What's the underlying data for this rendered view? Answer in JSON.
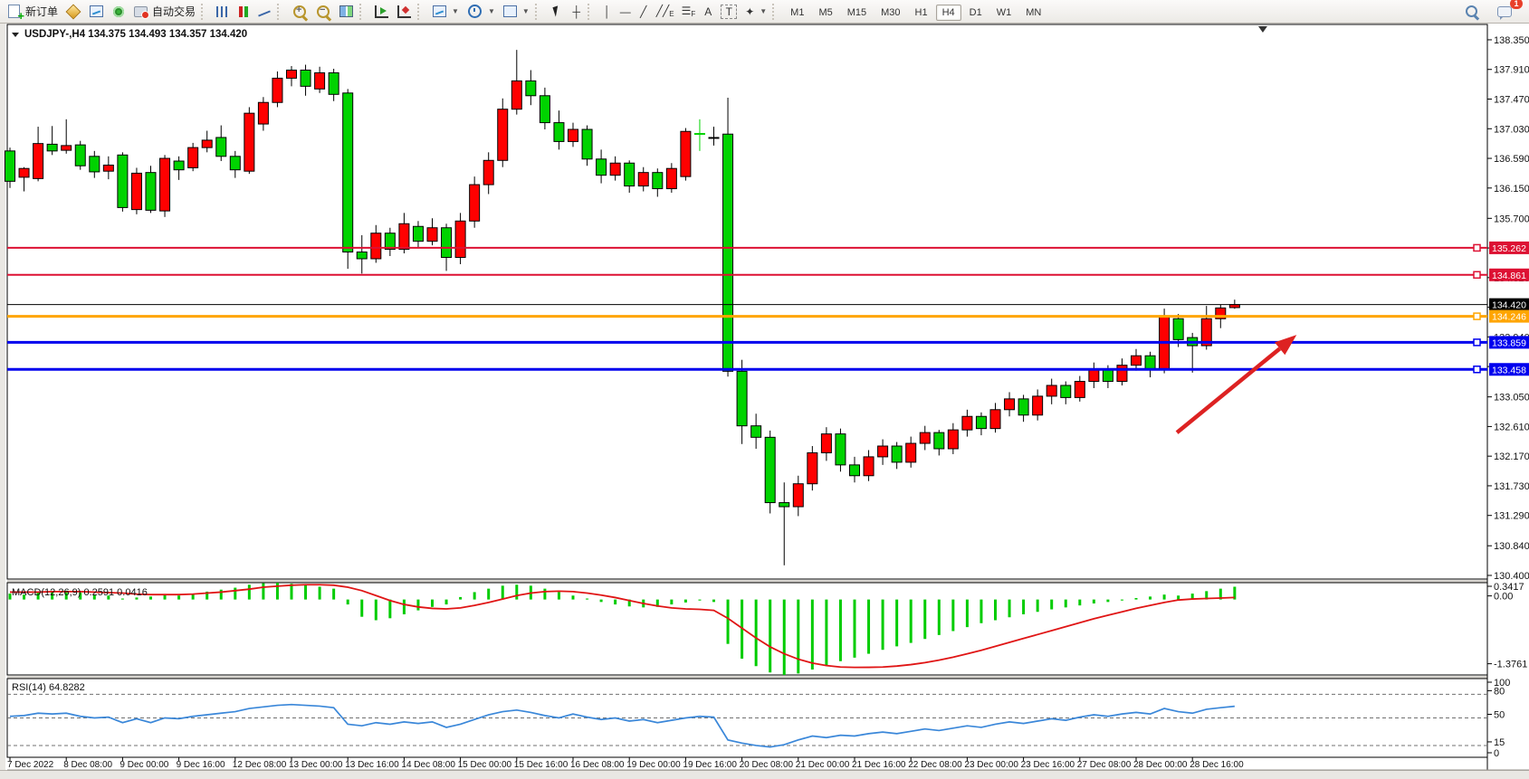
{
  "toolbar": {
    "new_order_label": "新订单",
    "autotrading_label": "自动交易",
    "chat_badge": "1",
    "timeframes": [
      {
        "label": "M1",
        "active": false
      },
      {
        "label": "M5",
        "active": false
      },
      {
        "label": "M15",
        "active": false
      },
      {
        "label": "M30",
        "active": false
      },
      {
        "label": "H1",
        "active": false
      },
      {
        "label": "H4",
        "active": true
      },
      {
        "label": "D1",
        "active": false
      },
      {
        "label": "W1",
        "active": false
      },
      {
        "label": "MN",
        "active": false
      }
    ]
  },
  "chart_data": {
    "type": "candlestick",
    "title": "USDJPY-,H4  134.375 134.493 134.357 134.420",
    "symbol": "USDJPY-",
    "timeframe": "H4",
    "current_ohlc": {
      "open": "134.375",
      "high": "134.493",
      "low": "134.357",
      "close": "134.420"
    },
    "convention_note": "red = bullish, green = bearish (CN color convention)",
    "up_color": "#ff0000",
    "down_color": "#00d300",
    "ylim": [
      130.346,
      138.578
    ],
    "price_ticks": [
      "138.350",
      "137.910",
      "137.470",
      "137.030",
      "136.590",
      "136.150",
      "135.700",
      "135.260",
      "134.820",
      "134.380",
      "133.940",
      "133.500",
      "133.050",
      "132.610",
      "132.170",
      "131.730",
      "131.290",
      "130.840",
      "130.400"
    ],
    "x_labels": [
      "7 Dec 2022",
      "8 Dec 08:00",
      "9 Dec 00:00",
      "9 Dec 16:00",
      "12 Dec 08:00",
      "13 Dec 00:00",
      "13 Dec 16:00",
      "14 Dec 08:00",
      "15 Dec 00:00",
      "15 Dec 16:00",
      "16 Dec 08:00",
      "19 Dec 00:00",
      "19 Dec 16:00",
      "20 Dec 08:00",
      "21 Dec 00:00",
      "21 Dec 16:00",
      "22 Dec 08:00",
      "23 Dec 00:00",
      "23 Dec 16:00",
      "27 Dec 08:00",
      "28 Dec 00:00",
      "28 Dec 16:00"
    ],
    "x_label_every": 4,
    "hlines": [
      {
        "price": 135.262,
        "label": "135.262",
        "color": "#dd1133",
        "width": 2,
        "handle": true
      },
      {
        "price": 134.861,
        "label": "134.861",
        "color": "#dd1133",
        "width": 2,
        "handle": true
      },
      {
        "price": 134.42,
        "label": "134.420",
        "color": "#000000",
        "width": 1,
        "handle": false
      },
      {
        "price": 134.246,
        "label": "134.246",
        "color": "#ffa500",
        "width": 3,
        "handle": true
      },
      {
        "price": 133.859,
        "label": "133.859",
        "color": "#0000ee",
        "width": 3,
        "handle": true
      },
      {
        "price": 133.458,
        "label": "133.458",
        "color": "#0000ee",
        "width": 3,
        "handle": true
      }
    ],
    "arrow": {
      "color": "#dd2222",
      "from": {
        "bar": 82.9,
        "price": 132.52
      },
      "to": {
        "bar": 91.4,
        "price": 133.97
      }
    },
    "shift_marker_bar": 89,
    "candles": [
      [
        136.7,
        136.75,
        136.15,
        136.25
      ],
      [
        136.31,
        136.46,
        136.1,
        136.44
      ],
      [
        136.29,
        137.06,
        136.25,
        136.81
      ],
      [
        136.8,
        137.07,
        136.64,
        136.7
      ],
      [
        136.71,
        137.17,
        136.66,
        136.78
      ],
      [
        136.79,
        136.85,
        136.42,
        136.48
      ],
      [
        136.62,
        136.7,
        136.3,
        136.39
      ],
      [
        136.4,
        136.62,
        136.28,
        136.49
      ],
      [
        136.64,
        136.68,
        135.8,
        135.86
      ],
      [
        135.83,
        136.45,
        135.76,
        136.37
      ],
      [
        136.38,
        136.48,
        135.78,
        135.82
      ],
      [
        135.81,
        136.64,
        135.72,
        136.59
      ],
      [
        136.55,
        136.62,
        136.27,
        136.42
      ],
      [
        136.45,
        136.82,
        136.4,
        136.75
      ],
      [
        136.75,
        137.0,
        136.68,
        136.86
      ],
      [
        136.9,
        137.08,
        136.55,
        136.62
      ],
      [
        136.62,
        136.7,
        136.3,
        136.42
      ],
      [
        136.4,
        137.35,
        136.36,
        137.26
      ],
      [
        137.1,
        137.5,
        137.0,
        137.42
      ],
      [
        137.42,
        137.88,
        137.35,
        137.78
      ],
      [
        137.78,
        137.96,
        137.66,
        137.9
      ],
      [
        137.9,
        137.98,
        137.52,
        137.66
      ],
      [
        137.62,
        137.95,
        137.56,
        137.86
      ],
      [
        137.86,
        137.92,
        137.44,
        137.54
      ],
      [
        137.56,
        137.62,
        134.95,
        135.2
      ],
      [
        135.2,
        135.45,
        134.88,
        135.1
      ],
      [
        135.1,
        135.6,
        135.04,
        135.48
      ],
      [
        135.48,
        135.56,
        135.14,
        135.24
      ],
      [
        135.24,
        135.78,
        135.18,
        135.62
      ],
      [
        135.58,
        135.66,
        135.26,
        135.36
      ],
      [
        135.36,
        135.7,
        135.3,
        135.56
      ],
      [
        135.56,
        135.62,
        134.92,
        135.12
      ],
      [
        135.12,
        135.78,
        135.02,
        135.66
      ],
      [
        135.66,
        136.32,
        135.56,
        136.2
      ],
      [
        136.2,
        136.68,
        136.06,
        136.56
      ],
      [
        136.56,
        137.48,
        136.46,
        137.32
      ],
      [
        137.32,
        138.2,
        137.24,
        137.74
      ],
      [
        137.74,
        137.9,
        137.38,
        137.52
      ],
      [
        137.52,
        137.64,
        137.02,
        137.12
      ],
      [
        137.12,
        137.3,
        136.72,
        136.84
      ],
      [
        136.84,
        137.12,
        136.76,
        137.02
      ],
      [
        137.02,
        137.08,
        136.48,
        136.58
      ],
      [
        136.58,
        136.72,
        136.22,
        136.34
      ],
      [
        136.34,
        136.62,
        136.26,
        136.52
      ],
      [
        136.52,
        136.56,
        136.08,
        136.18
      ],
      [
        136.18,
        136.46,
        136.1,
        136.38
      ],
      [
        136.38,
        136.44,
        136.02,
        136.14
      ],
      [
        136.14,
        136.52,
        136.08,
        136.44
      ],
      [
        136.32,
        137.04,
        136.26,
        136.99
      ],
      [
        136.96,
        137.17,
        136.7,
        136.95
      ],
      [
        136.9,
        137.06,
        136.78,
        136.9
      ],
      [
        136.95,
        137.49,
        133.35,
        133.43
      ],
      [
        133.43,
        133.6,
        132.35,
        132.62
      ],
      [
        132.62,
        132.8,
        132.28,
        132.45
      ],
      [
        132.45,
        132.55,
        131.32,
        131.48
      ],
      [
        131.48,
        131.78,
        130.55,
        131.42
      ],
      [
        131.42,
        131.88,
        131.28,
        131.76
      ],
      [
        131.76,
        132.32,
        131.66,
        132.22
      ],
      [
        132.22,
        132.6,
        132.1,
        132.5
      ],
      [
        132.5,
        132.58,
        131.94,
        132.04
      ],
      [
        132.04,
        132.16,
        131.78,
        131.88
      ],
      [
        131.88,
        132.26,
        131.8,
        132.16
      ],
      [
        132.16,
        132.42,
        132.04,
        132.32
      ],
      [
        132.32,
        132.38,
        131.98,
        132.08
      ],
      [
        132.08,
        132.46,
        132.0,
        132.36
      ],
      [
        132.36,
        132.62,
        132.26,
        132.52
      ],
      [
        132.52,
        132.56,
        132.18,
        132.28
      ],
      [
        132.28,
        132.66,
        132.2,
        132.56
      ],
      [
        132.56,
        132.86,
        132.46,
        132.76
      ],
      [
        132.76,
        132.82,
        132.48,
        132.58
      ],
      [
        132.58,
        132.96,
        132.52,
        132.86
      ],
      [
        132.86,
        133.12,
        132.76,
        133.02
      ],
      [
        133.02,
        133.08,
        132.68,
        132.78
      ],
      [
        132.78,
        133.16,
        132.7,
        133.06
      ],
      [
        133.06,
        133.32,
        132.94,
        133.22
      ],
      [
        133.22,
        133.28,
        132.94,
        133.04
      ],
      [
        133.04,
        133.36,
        132.98,
        133.28
      ],
      [
        133.28,
        133.56,
        133.18,
        133.46
      ],
      [
        133.46,
        133.52,
        133.18,
        133.28
      ],
      [
        133.28,
        133.62,
        133.22,
        133.52
      ],
      [
        133.52,
        133.76,
        133.44,
        133.66
      ],
      [
        133.66,
        133.72,
        133.34,
        133.46
      ],
      [
        133.46,
        134.36,
        133.4,
        134.25
      ],
      [
        134.21,
        134.28,
        133.79,
        133.9
      ],
      [
        133.93,
        134.0,
        133.41,
        133.81
      ],
      [
        133.81,
        134.4,
        133.75,
        134.21
      ],
      [
        134.21,
        134.42,
        134.07,
        134.37
      ],
      [
        134.375,
        134.493,
        134.357,
        134.42
      ]
    ],
    "macd": {
      "label": "MACD(12,26,9) 0.2591 0.0416",
      "params": "12,26,9",
      "value_main": "0.2591",
      "value_signal": "0.0416",
      "ticks": [
        "0.3417",
        "0.00",
        "-1.3761"
      ],
      "tick_values": [
        0.3417,
        0,
        -1.3761
      ],
      "ylim": [
        -1.53,
        0.3417
      ],
      "hist_color": "#00cc00",
      "signal_color": "#e01515",
      "hist": [
        0.12,
        0.1,
        0.14,
        0.16,
        0.18,
        0.14,
        0.1,
        0.08,
        0.02,
        0.04,
        0.06,
        0.1,
        0.08,
        0.12,
        0.16,
        0.2,
        0.24,
        0.3,
        0.33,
        0.34,
        0.32,
        0.3,
        0.26,
        0.22,
        -0.1,
        -0.35,
        -0.42,
        -0.38,
        -0.3,
        -0.22,
        -0.15,
        -0.1,
        0.05,
        0.15,
        0.22,
        0.28,
        0.3,
        0.28,
        0.22,
        0.15,
        0.08,
        0.02,
        -0.05,
        -0.1,
        -0.14,
        -0.16,
        -0.15,
        -0.1,
        -0.06,
        -0.02,
        -0.05,
        -0.9,
        -1.2,
        -1.35,
        -1.48,
        -1.53,
        -1.5,
        -1.42,
        -1.33,
        -1.25,
        -1.18,
        -1.1,
        -1.02,
        -0.95,
        -0.88,
        -0.8,
        -0.72,
        -0.64,
        -0.56,
        -0.48,
        -0.42,
        -0.36,
        -0.3,
        -0.25,
        -0.2,
        -0.16,
        -0.12,
        -0.08,
        -0.05,
        -0.02,
        0.03,
        0.06,
        0.1,
        0.08,
        0.12,
        0.17,
        0.22,
        0.2591
      ],
      "signal": [
        0.15,
        0.15,
        0.15,
        0.16,
        0.16,
        0.16,
        0.15,
        0.14,
        0.13,
        0.11,
        0.1,
        0.1,
        0.1,
        0.11,
        0.13,
        0.15,
        0.18,
        0.21,
        0.25,
        0.27,
        0.29,
        0.3,
        0.3,
        0.29,
        0.25,
        0.18,
        0.08,
        -0.02,
        -0.1,
        -0.15,
        -0.18,
        -0.19,
        -0.17,
        -0.12,
        -0.06,
        0.01,
        0.08,
        0.13,
        0.16,
        0.17,
        0.16,
        0.13,
        0.09,
        0.04,
        -0.02,
        -0.08,
        -0.13,
        -0.17,
        -0.19,
        -0.2,
        -0.22,
        -0.38,
        -0.58,
        -0.78,
        -0.96,
        -1.1,
        -1.21,
        -1.29,
        -1.34,
        -1.37,
        -1.376,
        -1.375,
        -1.37,
        -1.35,
        -1.32,
        -1.28,
        -1.23,
        -1.17,
        -1.1,
        -1.03,
        -0.95,
        -0.87,
        -0.79,
        -0.71,
        -0.63,
        -0.55,
        -0.47,
        -0.39,
        -0.32,
        -0.25,
        -0.18,
        -0.12,
        -0.06,
        -0.01,
        0.01,
        0.02,
        0.03,
        0.0416
      ]
    },
    "rsi": {
      "label": "RSI(14) 64.8282",
      "params": "14",
      "value": "64.8282",
      "ticks": [
        "100",
        "80",
        "50",
        "15",
        "0"
      ],
      "tick_values": [
        100,
        80,
        50,
        15,
        0
      ],
      "levels": [
        80,
        50,
        15
      ],
      "ylim": [
        0,
        100
      ],
      "line_color": "#3a87d9",
      "values": [
        52,
        53,
        56,
        55,
        56,
        52,
        50,
        51,
        44,
        49,
        44,
        50,
        49,
        52,
        54,
        56,
        58,
        62,
        64,
        66,
        67,
        66,
        65,
        63,
        42,
        40,
        44,
        42,
        45,
        43,
        45,
        38,
        42,
        48,
        54,
        58,
        60,
        57,
        53,
        50,
        55,
        51,
        48,
        50,
        46,
        48,
        44,
        47,
        50,
        52,
        51,
        22,
        18,
        15,
        13,
        16,
        22,
        27,
        25,
        28,
        27,
        30,
        32,
        30,
        33,
        36,
        34,
        37,
        40,
        38,
        42,
        45,
        43,
        46,
        49,
        47,
        51,
        54,
        52,
        55,
        57,
        55,
        62,
        58,
        56,
        61,
        63,
        64.83
      ]
    }
  }
}
